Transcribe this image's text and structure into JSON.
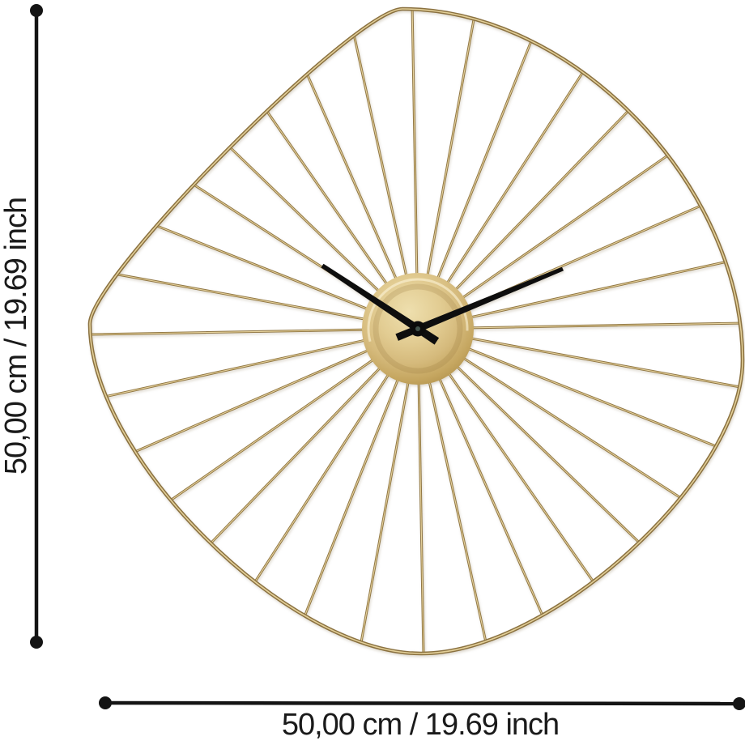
{
  "image_type": "product-dimension-diagram",
  "dimension_labels": {
    "height": "50,00 cm / 19.69 inch",
    "width": "50,00 cm / 19.69 inch"
  },
  "annotation": {
    "line_color": "#141414",
    "text_color": "#1a1a1a"
  },
  "clock": {
    "style": "gold wire vertigo wall clock",
    "spoke_count": 32,
    "time_shown": "approximately 10:08",
    "colors": {
      "wire_dark": "#8e7440",
      "wire_light": "#e6d29c",
      "frame_dark": "#8a7140",
      "frame_light": "#e3cf98",
      "disc_light": "#eedfae",
      "disc_mid": "#d5ba7c",
      "disc_dark": "#b5954f",
      "disc_rim": "#a1824a",
      "hands": "#0e0e0e",
      "hub": "#0b0b0b",
      "hub_center": "#41524b"
    }
  }
}
